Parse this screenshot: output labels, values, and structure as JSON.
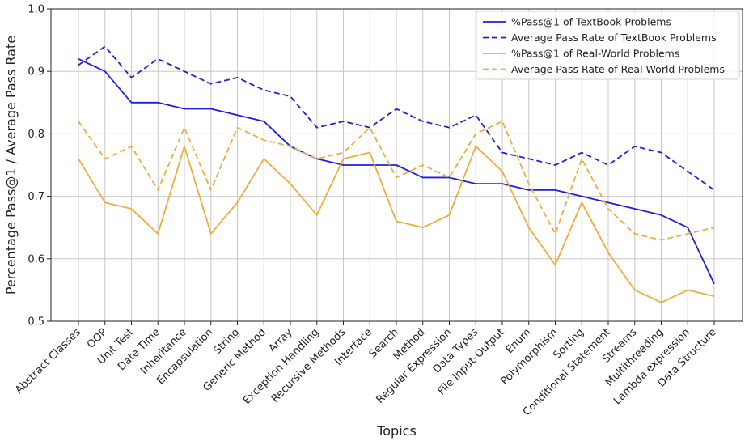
{
  "chart_data": {
    "type": "line",
    "title": "",
    "xlabel": "Topics",
    "ylabel": "Percentage Pass@1 / Average Pass Rate",
    "ylim": [
      0.5,
      1.0
    ],
    "yticks": [
      "0.5",
      "0.6",
      "0.7",
      "0.8",
      "0.9",
      "1.0"
    ],
    "grid": true,
    "legend_position": "top-right",
    "categories": [
      "Abstract Classes",
      "OOP",
      "Unit Test",
      "Date Time",
      "Inheritance",
      "Encapsulation",
      "String",
      "Generic Method",
      "Array",
      "Exception Handling",
      "Recursive Methods",
      "Interface",
      "Search",
      "Method",
      "Regular Expression",
      "Data Types",
      "File Input-Output",
      "Enum",
      "Polymorphism",
      "Sorting",
      "Conditional Statement",
      "Streams",
      "Multithreading",
      "Lambda expression",
      "Data Structure"
    ],
    "series": [
      {
        "name": "%Pass@1 of TextBook Problems",
        "color": "#1f1fe0",
        "style": "solid",
        "values": [
          0.92,
          0.9,
          0.85,
          0.85,
          0.84,
          0.84,
          0.83,
          0.82,
          0.78,
          0.76,
          0.75,
          0.75,
          0.75,
          0.73,
          0.73,
          0.72,
          0.72,
          0.71,
          0.71,
          0.7,
          0.69,
          0.68,
          0.67,
          0.65,
          0.56
        ]
      },
      {
        "name": "Average Pass Rate of TextBook Problems",
        "color": "#1f1fe0",
        "style": "dashed",
        "values": [
          0.91,
          0.94,
          0.89,
          0.92,
          0.9,
          0.88,
          0.89,
          0.87,
          0.86,
          0.81,
          0.82,
          0.81,
          0.84,
          0.82,
          0.81,
          0.83,
          0.77,
          0.76,
          0.75,
          0.77,
          0.75,
          0.78,
          0.77,
          0.74,
          0.71
        ]
      },
      {
        "name": "%Pass@1 of Real-World Problems",
        "color": "#f0ac3c",
        "style": "solid",
        "values": [
          0.76,
          0.69,
          0.68,
          0.64,
          0.78,
          0.64,
          0.69,
          0.76,
          0.72,
          0.67,
          0.76,
          0.77,
          0.66,
          0.65,
          0.67,
          0.78,
          0.74,
          0.65,
          0.59,
          0.69,
          0.61,
          0.55,
          0.53,
          0.55,
          0.54
        ]
      },
      {
        "name": "Average Pass Rate of Real-World Problems",
        "color": "#f0ac3c",
        "style": "dashed",
        "values": [
          0.82,
          0.76,
          0.78,
          0.71,
          0.81,
          0.71,
          0.81,
          0.79,
          0.78,
          0.76,
          0.77,
          0.81,
          0.73,
          0.75,
          0.73,
          0.8,
          0.82,
          0.72,
          0.64,
          0.76,
          0.68,
          0.64,
          0.63,
          0.64,
          0.65
        ]
      }
    ]
  }
}
